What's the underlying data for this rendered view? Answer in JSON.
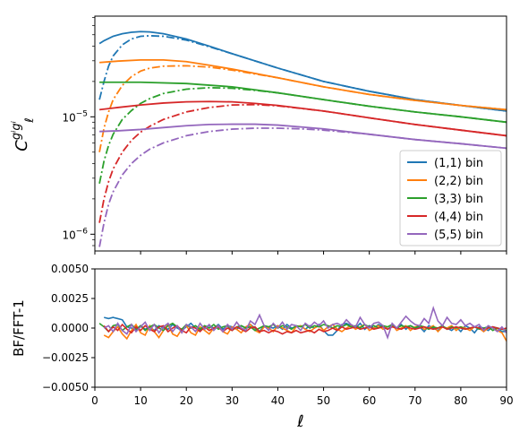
{
  "chart_data": [
    {
      "type": "line",
      "panel": "top",
      "ylabel": "C_ℓ^{gⁱgⁱ}",
      "ylabel_main": "C",
      "ylabel_sub": "ℓ",
      "ylabel_sup": "gⁱgⁱ",
      "y_scale": "log",
      "xlim": [
        0,
        90
      ],
      "ylim": [
        7.2e-07,
        7.2e-05
      ],
      "yticks": [
        {
          "value": 1e-06,
          "mantissa": "10",
          "exp": "−6"
        },
        {
          "value": 1e-05,
          "mantissa": "10",
          "exp": "−5"
        }
      ],
      "legend_position": "lower right",
      "line_styles": {
        "solid": "BF",
        "dashdot": "FFT"
      },
      "series": [
        {
          "name": "(1,1) bin",
          "color": "#1f77b4",
          "solid": {
            "x": [
              1,
              2,
              4,
              6,
              8,
              10,
              12,
              15,
              20,
              25,
              30,
              40,
              50,
              60,
              70,
              80,
              90
            ],
            "y": [
              4.2e-05,
              4.45e-05,
              4.85e-05,
              5.1e-05,
              5.25e-05,
              5.32e-05,
              5.28e-05,
              5.1e-05,
              4.6e-05,
              4e-05,
              3.45e-05,
              2.6e-05,
              2e-05,
              1.65e-05,
              1.4e-05,
              1.25e-05,
              1.12e-05
            ]
          },
          "dashdot": {
            "x": [
              1,
              2,
              3,
              4,
              6,
              8,
              10,
              12,
              15,
              20,
              25,
              30,
              40,
              50,
              60,
              70,
              80,
              90
            ],
            "y": [
              1.4e-05,
              2e-05,
              2.7e-05,
              3.3e-05,
              4.1e-05,
              4.6e-05,
              4.85e-05,
              4.9e-05,
              4.85e-05,
              4.5e-05,
              3.95e-05,
              3.45e-05,
              2.6e-05,
              2e-05,
              1.65e-05,
              1.4e-05,
              1.25e-05,
              1.12e-05
            ]
          }
        },
        {
          "name": "(2,2) bin",
          "color": "#ff7f0e",
          "solid": {
            "x": [
              1,
              5,
              10,
              15,
              20,
              25,
              30,
              40,
              50,
              60,
              70,
              80,
              90
            ],
            "y": [
              2.9e-05,
              2.98e-05,
              3.05e-05,
              3.05e-05,
              2.95e-05,
              2.75e-05,
              2.55e-05,
              2.15e-05,
              1.8e-05,
              1.55e-05,
              1.38e-05,
              1.25e-05,
              1.15e-05
            ]
          },
          "dashdot": {
            "x": [
              1,
              2,
              3,
              4,
              6,
              8,
              10,
              12,
              15,
              20,
              25,
              30,
              40,
              50,
              60,
              70,
              80,
              90
            ],
            "y": [
              5e-06,
              8e-06,
              1.1e-05,
              1.4e-05,
              1.85e-05,
              2.2e-05,
              2.45e-05,
              2.6e-05,
              2.7e-05,
              2.72e-05,
              2.65e-05,
              2.5e-05,
              2.15e-05,
              1.8e-05,
              1.55e-05,
              1.38e-05,
              1.25e-05,
              1.15e-05
            ]
          }
        },
        {
          "name": "(3,3) bin",
          "color": "#2ca02c",
          "solid": {
            "x": [
              1,
              10,
              20,
              30,
              40,
              50,
              60,
              70,
              80,
              90
            ],
            "y": [
              1.97e-05,
              1.97e-05,
              1.92e-05,
              1.8e-05,
              1.6e-05,
              1.4e-05,
              1.23e-05,
              1.1e-05,
              1e-05,
              9e-06
            ]
          },
          "dashdot": {
            "x": [
              1,
              2,
              3,
              4,
              6,
              8,
              10,
              12,
              15,
              20,
              25,
              30,
              35,
              40,
              50,
              60,
              70,
              80,
              90
            ],
            "y": [
              2.7e-06,
              4.2e-06,
              5.7e-06,
              7.1e-06,
              9.5e-06,
              1.13e-05,
              1.3e-05,
              1.43e-05,
              1.58e-05,
              1.72e-05,
              1.77e-05,
              1.75e-05,
              1.68e-05,
              1.6e-05,
              1.4e-05,
              1.23e-05,
              1.1e-05,
              1e-05,
              9e-06
            ]
          }
        },
        {
          "name": "(4,4) bin",
          "color": "#d62728",
          "solid": {
            "x": [
              1,
              5,
              10,
              15,
              20,
              25,
              30,
              35,
              40,
              50,
              60,
              70,
              80,
              90
            ],
            "y": [
              1.15e-05,
              1.2e-05,
              1.26e-05,
              1.31e-05,
              1.34e-05,
              1.35e-05,
              1.34e-05,
              1.3e-05,
              1.25e-05,
              1.12e-05,
              9.8e-06,
              8.6e-06,
              7.7e-06,
              6.9e-06
            ]
          },
          "dashdot": {
            "x": [
              1,
              2,
              3,
              4,
              6,
              8,
              10,
              12,
              15,
              20,
              25,
              30,
              35,
              40,
              50,
              60,
              70,
              80,
              90
            ],
            "y": [
              1.25e-06,
              2e-06,
              2.8e-06,
              3.6e-06,
              5e-06,
              6.3e-06,
              7.4e-06,
              8.3e-06,
              9.5e-06,
              1.1e-05,
              1.2e-05,
              1.26e-05,
              1.27e-05,
              1.24e-05,
              1.12e-05,
              9.8e-06,
              8.6e-06,
              7.7e-06,
              6.9e-06
            ]
          }
        },
        {
          "name": "(5,5) bin",
          "color": "#9467bd",
          "solid": {
            "x": [
              1,
              5,
              10,
              15,
              20,
              25,
              30,
              35,
              40,
              45,
              50,
              60,
              70,
              80,
              90
            ],
            "y": [
              7.5e-06,
              7.6e-06,
              7.8e-06,
              8.1e-06,
              8.4e-06,
              8.6e-06,
              8.65e-06,
              8.65e-06,
              8.5e-06,
              8.2e-06,
              7.9e-06,
              7.1e-06,
              6.4e-06,
              5.9e-06,
              5.4e-06
            ]
          },
          "dashdot": {
            "x": [
              1,
              2,
              3,
              4,
              6,
              8,
              10,
              12,
              15,
              20,
              25,
              30,
              35,
              40,
              45,
              50,
              60,
              70,
              80,
              90
            ],
            "y": [
              7.8e-07,
              1.25e-06,
              1.8e-06,
              2.3e-06,
              3.2e-06,
              4e-06,
              4.7e-06,
              5.3e-06,
              6e-06,
              6.9e-06,
              7.5e-06,
              7.85e-06,
              8e-06,
              8e-06,
              7.9e-06,
              7.7e-06,
              7.1e-06,
              6.4e-06,
              5.9e-06,
              5.4e-06
            ]
          }
        }
      ]
    },
    {
      "type": "line",
      "panel": "bottom",
      "xlabel": "ℓ",
      "ylabel": "BF/FFT-1",
      "xlim": [
        0,
        90
      ],
      "ylim": [
        -0.005,
        0.005
      ],
      "xticks": [
        "0",
        "10",
        "20",
        "30",
        "40",
        "50",
        "60",
        "70",
        "80",
        "90"
      ],
      "yticks": [
        "−0.0050",
        "−0.0025",
        "0.0000",
        "0.0025",
        "0.0050"
      ],
      "series": [
        {
          "name": "(1,1) bin",
          "color": "#1f77b4",
          "x_start": 2,
          "y": [
            0.0009,
            0.0008,
            0.0009,
            0.0008,
            0.0007,
            0.0001,
            0.0,
            -0.0002,
            0.0002,
            -0.0001,
            0.0001,
            -0.0002,
            0.0002,
            0.0,
            -0.0001,
            0.0003,
            0.0,
            -0.0002,
            0.0001,
            0.0004,
            0.0,
            -0.0002,
            0.0001,
            0.0002,
            0.0,
            0.0003,
            -0.0001,
            0.0002,
            0.0001,
            -0.0001,
            0.0002,
            0.0,
            0.0003,
            0.0,
            -0.0003,
            0.0002,
            0.0001,
            0.0,
            0.0002,
            -0.0001,
            0.0003,
            0.0,
            0.0001,
            0.0002,
            -0.0001,
            0.0002,
            0.0,
            0.0003,
            -0.0002,
            -0.0006,
            -0.0006,
            -0.0002,
            0.0003,
            0.0004,
            0.0002,
            0.0,
            0.0004,
            -0.0001,
            0.0002,
            0.0,
            0.0003,
            0.0001,
            -0.0001,
            0.0002,
            0.0,
            0.0003,
            -0.0001,
            0.0002,
            0.0,
            0.0001,
            -0.0003,
            0.0002,
            0.0,
            -0.0002,
            0.0001,
            0.0,
            -0.0002,
            0.0001,
            -0.0003,
            0.0002,
            0.0,
            -0.0004,
            0.0001,
            0.0,
            -0.0002,
            0.0001,
            0.0,
            -0.0003,
            -0.0003
          ]
        },
        {
          "name": "(2,2) bin",
          "color": "#ff7f0e",
          "x_start": 2,
          "y": [
            -0.0006,
            -0.0008,
            -0.0003,
            0.0001,
            -0.0005,
            -0.0009,
            -0.0002,
            0.0003,
            -0.0004,
            -0.0006,
            0.0002,
            -0.0003,
            -0.0008,
            -0.0002,
            0.0003,
            -0.0005,
            -0.0007,
            -0.0001,
            0.0002,
            -0.0004,
            -0.0006,
            0.0001,
            -0.0002,
            -0.0005,
            0.0,
            0.0002,
            -0.0003,
            -0.0005,
            0.0001,
            -0.0001,
            -0.0004,
            0.0001,
            0.0003,
            -0.0002,
            -0.0004,
            0.0001,
            0.0,
            -0.0003,
            0.0002,
            0.0,
            -0.0002,
            -0.0004,
            0.0001,
            0.0002,
            -0.0001,
            -0.0003,
            0.0,
            0.0002,
            -0.0002,
            0.0001,
            0.0003,
            -0.0001,
            -0.0003,
            0.0,
            0.0002,
            -0.0001,
            0.0001,
            0.0003,
            -0.0002,
            0.0,
            0.0002,
            -0.0001,
            0.0001,
            0.0003,
            -0.0002,
            0.0,
            0.0002,
            -0.0002,
            0.0001,
            0.0002,
            -0.0001,
            0.0,
            0.0002,
            -0.0003,
            0.0001,
            0.0,
            0.0002,
            -0.0002,
            0.0001,
            0.0,
            -0.0002,
            0.0001,
            0.0,
            -0.0003,
            0.0,
            0.0001,
            -0.0002,
            -0.0004,
            -0.0011
          ]
        },
        {
          "name": "(3,3) bin",
          "color": "#2ca02c",
          "x_start": 1,
          "y": [
            0.0004,
            0.0001,
            -0.0003,
            0.0002,
            0.0003,
            -0.0002,
            0.0001,
            0.0003,
            -0.0001,
            0.0002,
            -0.0002,
            0.0001,
            0.0003,
            0.0,
            -0.0002,
            0.0002,
            0.0004,
            0.0001,
            -0.0001,
            0.0003,
            0.0,
            0.0002,
            -0.0001,
            0.0002,
            0.0,
            0.0003,
            -0.0001,
            0.0001,
            0.0002,
            -0.0002,
            0.0001,
            0.0002,
            0.0,
            0.0001,
            -0.0002,
            0.0,
            0.0002,
            0.0001,
            0.0003,
            0.0,
            0.0002,
            0.0001,
            -0.0001,
            0.0002,
            0.0001,
            0.0003,
            0.0,
            0.0002,
            0.0001,
            0.0003,
            0.0002,
            0.0,
            0.0002,
            0.0001,
            0.0003,
            0.0001,
            0.0002,
            0.0,
            0.0003,
            0.0001,
            0.0002,
            0.0,
            0.0002,
            0.0001,
            0.0003,
            0.0,
            0.0002,
            0.0001,
            0.0002,
            0.0,
            0.0002,
            0.0001,
            -0.0001,
            0.0001,
            0.0,
            0.0002,
            -0.0001,
            0.0001,
            0.0,
            0.0001,
            -0.0001,
            0.0,
            0.0001,
            -0.0001,
            0.0,
            0.0001,
            -0.0002,
            0.0,
            -0.0001,
            -0.0002
          ]
        },
        {
          "name": "(4,4) bin",
          "color": "#d62728",
          "x_start": 2,
          "y": [
            0.0002,
            -0.0003,
            0.0001,
            -0.0002,
            0.0003,
            -0.0001,
            -0.0004,
            0.0001,
            -0.0002,
            0.0002,
            -0.0001,
            -0.0003,
            0.0001,
            0.0002,
            -0.0003,
            0.0,
            0.0002,
            -0.0002,
            -0.0004,
            0.0001,
            0.0,
            -0.0003,
            0.0001,
            -0.0002,
            0.0,
            0.0001,
            -0.0003,
            0.0,
            -0.0002,
            0.0001,
            -0.0001,
            -0.0003,
            0.0,
            0.0001,
            -0.0003,
            -0.0002,
            -0.0004,
            -0.0002,
            -0.0003,
            -0.0005,
            -0.0003,
            -0.0004,
            -0.0002,
            -0.0004,
            -0.0003,
            -0.0002,
            -0.0004,
            -0.0001,
            -0.0003,
            -0.0002,
            0.0,
            -0.0002,
            0.0001,
            -0.0001,
            0.0,
            0.0001,
            -0.0001,
            0.0,
            0.0001,
            -0.0001,
            0.0,
            0.0001,
            -0.0001,
            0.0001,
            0.0,
            -0.0001,
            0.0001,
            0.0,
            -0.0001,
            0.0,
            0.0001,
            0.0,
            -0.0001,
            0.0,
            0.0001,
            -0.0001,
            0.0,
            0.0001,
            0.0,
            -0.0001,
            0.0,
            0.0001,
            0.0,
            -0.0001,
            0.0,
            0.0001,
            0.0,
            -0.0001,
            0.0
          ]
        },
        {
          "name": "(5,5) bin",
          "color": "#9467bd",
          "x_start": 2,
          "y": [
            0.0,
            0.0002,
            -0.0003,
            0.0004,
            -0.0002,
            -0.0005,
            0.0003,
            -0.0003,
            0.0001,
            0.0005,
            -0.0002,
            0.0003,
            -0.0004,
            0.0001,
            0.0004,
            -0.0003,
            0.0002,
            -0.0004,
            0.0003,
            0.0001,
            -0.0003,
            0.0004,
            -0.0001,
            0.0003,
            -0.0002,
            0.0002,
            -0.0003,
            0.0003,
            -0.0001,
            0.0005,
            0.0,
            -0.0002,
            0.0006,
            0.0003,
            0.0011,
            0.0002,
            -0.0002,
            0.0004,
            0.0,
            0.0005,
            -0.0001,
            0.0003,
            0.0002,
            -0.0002,
            0.0004,
            0.0001,
            0.0005,
            0.0002,
            0.0006,
            0.0,
            0.0003,
            0.0004,
            0.0002,
            0.0007,
            0.0003,
            0.0001,
            0.0009,
            0.0003,
            0.0,
            0.0004,
            0.0005,
            0.0002,
            -0.0008,
            0.0004,
            0.0,
            0.0005,
            0.001,
            0.0006,
            0.0003,
            0.0002,
            0.0008,
            0.0004,
            0.0017,
            0.0006,
            0.0002,
            0.0009,
            0.0004,
            0.0003,
            0.0007,
            0.0002,
            0.0004,
            0.0001,
            0.0003,
            -0.0002,
            0.0002,
            0.0,
            -0.0003,
            0.0001,
            -0.0004
          ]
        }
      ]
    }
  ]
}
